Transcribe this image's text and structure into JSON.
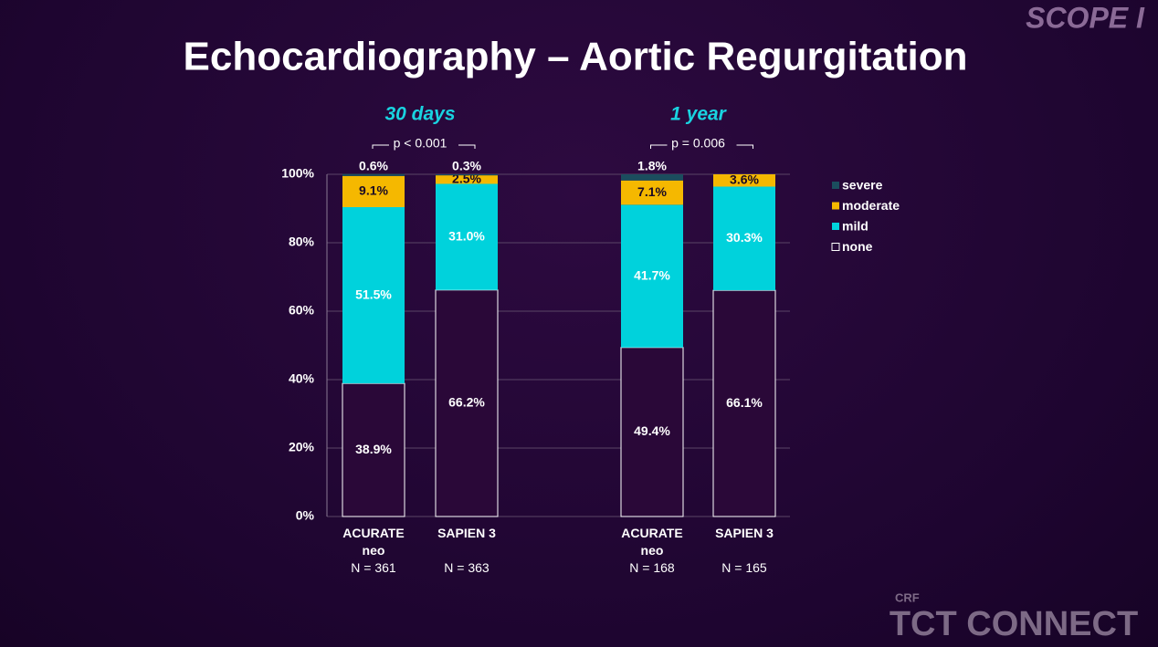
{
  "header": {
    "title": "Echocardiography – Aortic Regurgitation",
    "logo": "SCOPE I",
    "footer_logo": "TCT CONNECT",
    "footer_small": "CRF"
  },
  "chart_data": {
    "type": "stacked_bar",
    "groups": [
      {
        "label": "30 days",
        "p_value": "p < 0.001"
      },
      {
        "label": "1 year",
        "p_value": "p = 0.006"
      }
    ],
    "categories": [
      "ACURATE neo",
      "SAPIEN 3",
      "ACURATE neo",
      "SAPIEN 3"
    ],
    "n_labels": [
      "N = 361",
      "N = 363",
      "N = 168",
      "N = 165"
    ],
    "series": [
      {
        "name": "none",
        "color": "#2a0838",
        "values": [
          38.9,
          66.2,
          49.4,
          66.1
        ],
        "value_labels": [
          "38.9%",
          "66.2%",
          "49.4%",
          "66.1%"
        ]
      },
      {
        "name": "mild",
        "color": "#00d2dc",
        "values": [
          51.5,
          31.0,
          41.7,
          30.3
        ],
        "value_labels": [
          "51.5%",
          "31.0%",
          "41.7%",
          "30.3%"
        ]
      },
      {
        "name": "moderate",
        "color": "#f5b800",
        "values": [
          9.1,
          2.5,
          7.1,
          3.6
        ],
        "value_labels": [
          "9.1%",
          "2.5%",
          "7.1%",
          "3.6%"
        ]
      },
      {
        "name": "severe",
        "color": "#1b4d5e",
        "values": [
          0.6,
          0.3,
          1.8,
          0
        ],
        "value_labels": [
          "0.6%",
          "0.3%",
          "1.8%",
          null
        ]
      }
    ],
    "ylim": [
      0,
      100
    ],
    "yticks": [
      {
        "value": 0,
        "label": "0%"
      },
      {
        "value": 20,
        "label": "20%"
      },
      {
        "value": 40,
        "label": "40%"
      },
      {
        "value": 60,
        "label": "60%"
      },
      {
        "value": 80,
        "label": "80%"
      },
      {
        "value": 100,
        "label": "100%"
      }
    ],
    "grid": true,
    "legend": "right"
  }
}
